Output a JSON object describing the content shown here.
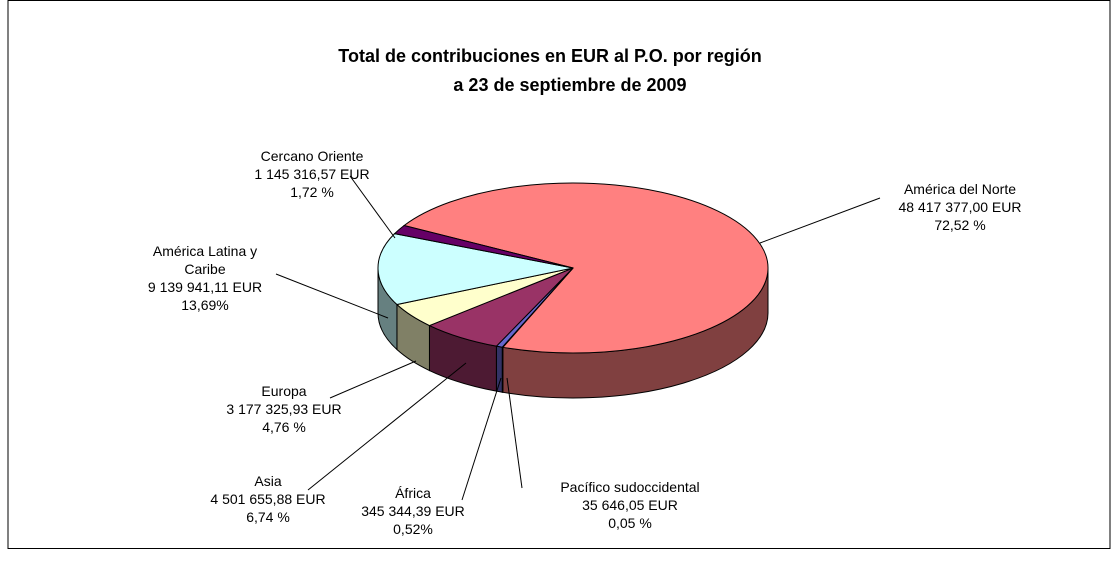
{
  "chart_data": {
    "type": "pie",
    "title": "Total de contribuciones en EUR al P.O. por región",
    "subtitle": "a 23 de septiembre de 2009",
    "categories": [
      "América del Norte",
      "Pacífico sudoccidental",
      "África",
      "Asia",
      "Europa",
      "América Latina y Caribe",
      "Cercano Oriente"
    ],
    "values": [
      48417377.0,
      35646.05,
      345344.39,
      4501655.88,
      3177325.93,
      9139941.11,
      1145316.57
    ],
    "value_labels": [
      "48 417 377,00 EUR",
      "35 646,05 EUR",
      "345 344,39 EUR",
      "4 501 655,88 EUR",
      "3 177 325,93 EUR",
      "9 139 941,11 EUR",
      "1 145 316,57 EUR"
    ],
    "percents": [
      72.52,
      0.05,
      0.52,
      6.74,
      4.76,
      13.69,
      1.72
    ],
    "percent_labels": [
      "72,52 %",
      "0,05 %",
      "0,52%",
      "6,74 %",
      "4,76 %",
      "13,69%",
      "1,72 %"
    ],
    "colors": [
      "#FF8080",
      "#9999FF",
      "#6666CC",
      "#993366",
      "#FFFFCC",
      "#CCFFFF",
      "#660066"
    ]
  }
}
